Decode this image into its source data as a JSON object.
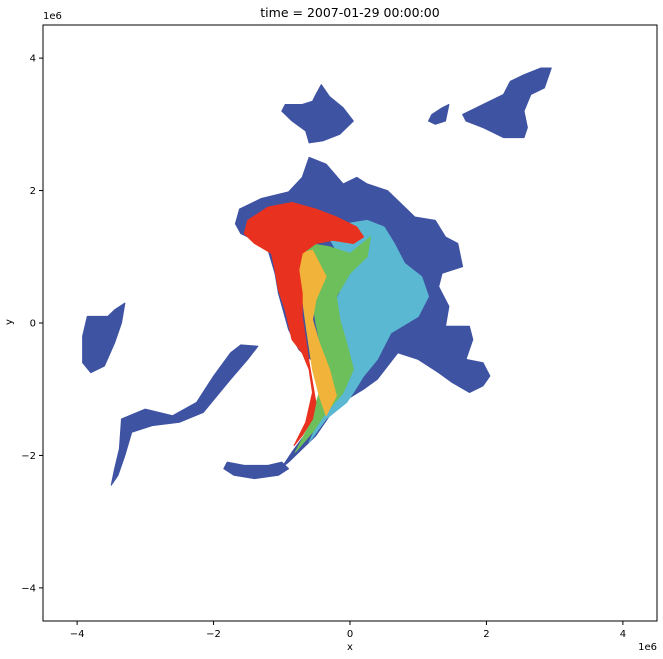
{
  "chart_data": {
    "type": "heatmap",
    "title": "time = 2007-01-29 00:00:00",
    "xlabel": "x",
    "ylabel": "y",
    "x_offset_label": "1e6",
    "y_offset_label": "1e6",
    "xlim": [
      -4.5,
      4.5
    ],
    "ylim": [
      -4.5,
      4.5
    ],
    "x_ticks": [
      -4,
      -2,
      0,
      2,
      4
    ],
    "y_ticks": [
      -4,
      -2,
      0,
      2,
      4
    ],
    "grid": false,
    "legend": "none",
    "colors": {
      "background": "#ffffff",
      "outer_region": "#3f53a3",
      "category_cyan": "#5ab8d2",
      "category_green": "#6cbf5b",
      "category_yellow": "#f2b33a",
      "category_red": "#e8321f"
    },
    "regions": [
      {
        "value_color": "outer_region",
        "polygons": [
          [
            [
              -1.62,
              1.72
            ],
            [
              -1.3,
              1.88
            ],
            [
              -0.9,
              1.98
            ],
            [
              -0.7,
              2.2
            ],
            [
              -0.6,
              2.5
            ],
            [
              -0.35,
              2.4
            ],
            [
              -0.1,
              2.1
            ],
            [
              0.1,
              2.2
            ],
            [
              0.25,
              2.1
            ],
            [
              0.55,
              2.0
            ],
            [
              0.7,
              1.85
            ],
            [
              0.95,
              1.6
            ],
            [
              1.25,
              1.55
            ],
            [
              1.4,
              1.3
            ],
            [
              1.58,
              1.2
            ],
            [
              1.65,
              0.85
            ],
            [
              1.35,
              0.75
            ],
            [
              1.3,
              0.55
            ],
            [
              1.45,
              0.25
            ],
            [
              1.4,
              -0.05
            ],
            [
              1.75,
              -0.05
            ],
            [
              1.8,
              -0.25
            ],
            [
              1.7,
              -0.55
            ],
            [
              1.95,
              -0.6
            ],
            [
              2.05,
              -0.8
            ],
            [
              1.95,
              -0.95
            ],
            [
              1.75,
              -1.05
            ],
            [
              1.5,
              -0.9
            ],
            [
              1.3,
              -0.75
            ],
            [
              1.0,
              -0.55
            ],
            [
              0.7,
              -0.45
            ],
            [
              0.4,
              -0.85
            ],
            [
              0.2,
              -1.0
            ],
            [
              -0.2,
              -1.25
            ],
            [
              -0.5,
              -1.7
            ],
            [
              -0.9,
              -2.1
            ],
            [
              -1.0,
              -2.18
            ],
            [
              -0.85,
              -1.95
            ],
            [
              -0.6,
              -1.6
            ],
            [
              -0.3,
              -0.95
            ],
            [
              -0.5,
              -0.6
            ],
            [
              -0.65,
              -0.5
            ],
            [
              -0.75,
              -0.4
            ],
            [
              -0.9,
              -0.1
            ],
            [
              -1.05,
              0.45
            ],
            [
              -1.1,
              0.75
            ],
            [
              -1.2,
              1.1
            ],
            [
              -1.4,
              1.25
            ],
            [
              -1.6,
              1.35
            ],
            [
              -1.68,
              1.5
            ]
          ],
          [
            [
              -0.95,
              3.3
            ],
            [
              -0.7,
              3.3
            ],
            [
              -0.55,
              3.35
            ],
            [
              -0.5,
              3.45
            ],
            [
              -0.42,
              3.6
            ],
            [
              -0.3,
              3.42
            ],
            [
              -0.1,
              3.25
            ],
            [
              0.05,
              3.05
            ],
            [
              -0.15,
              2.85
            ],
            [
              -0.4,
              2.75
            ],
            [
              -0.6,
              2.72
            ],
            [
              -0.65,
              2.9
            ],
            [
              -0.85,
              3.05
            ],
            [
              -1.0,
              3.2
            ]
          ],
          [
            [
              1.95,
              3.3
            ],
            [
              2.25,
              3.45
            ],
            [
              2.35,
              3.65
            ],
            [
              2.55,
              3.75
            ],
            [
              2.8,
              3.85
            ],
            [
              2.95,
              3.85
            ],
            [
              2.85,
              3.55
            ],
            [
              2.65,
              3.45
            ],
            [
              2.55,
              3.2
            ],
            [
              2.6,
              2.95
            ],
            [
              2.55,
              2.8
            ],
            [
              2.25,
              2.8
            ],
            [
              1.95,
              2.95
            ],
            [
              1.7,
              3.05
            ],
            [
              1.65,
              3.15
            ]
          ],
          [
            [
              1.2,
              3.15
            ],
            [
              1.35,
              3.25
            ],
            [
              1.45,
              3.3
            ],
            [
              1.4,
              3.05
            ],
            [
              1.25,
              3.0
            ],
            [
              1.15,
              3.05
            ]
          ],
          [
            [
              -3.85,
              0.1
            ],
            [
              -3.55,
              0.1
            ],
            [
              -3.45,
              0.2
            ],
            [
              -3.3,
              0.3
            ],
            [
              -3.35,
              0.0
            ],
            [
              -3.45,
              -0.3
            ],
            [
              -3.6,
              -0.65
            ],
            [
              -3.8,
              -0.75
            ],
            [
              -3.92,
              -0.6
            ],
            [
              -3.92,
              -0.2
            ]
          ],
          [
            [
              -3.35,
              -1.45
            ],
            [
              -3.0,
              -1.3
            ],
            [
              -2.6,
              -1.4
            ],
            [
              -2.25,
              -1.2
            ],
            [
              -2.0,
              -0.8
            ],
            [
              -1.75,
              -0.45
            ],
            [
              -1.6,
              -0.33
            ],
            [
              -1.35,
              -0.35
            ],
            [
              -1.5,
              -0.55
            ],
            [
              -1.75,
              -0.85
            ],
            [
              -1.95,
              -1.1
            ],
            [
              -2.15,
              -1.35
            ],
            [
              -2.5,
              -1.5
            ],
            [
              -2.9,
              -1.55
            ],
            [
              -3.2,
              -1.65
            ],
            [
              -3.3,
              -2.0
            ],
            [
              -3.4,
              -2.3
            ],
            [
              -3.5,
              -2.45
            ],
            [
              -3.45,
              -2.2
            ],
            [
              -3.38,
              -1.9
            ]
          ],
          [
            [
              -1.8,
              -2.1
            ],
            [
              -1.55,
              -2.15
            ],
            [
              -1.2,
              -2.15
            ],
            [
              -1.0,
              -2.1
            ],
            [
              -0.9,
              -2.2
            ],
            [
              -1.05,
              -2.3
            ],
            [
              -1.4,
              -2.35
            ],
            [
              -1.7,
              -2.3
            ],
            [
              -1.85,
              -2.2
            ]
          ]
        ]
      },
      {
        "value_color": "category_cyan",
        "polygons": [
          [
            [
              -0.4,
              1.45
            ],
            [
              -0.05,
              1.5
            ],
            [
              0.25,
              1.55
            ],
            [
              0.5,
              1.45
            ],
            [
              0.65,
              1.2
            ],
            [
              0.8,
              0.9
            ],
            [
              1.05,
              0.7
            ],
            [
              1.15,
              0.4
            ],
            [
              1.0,
              0.1
            ],
            [
              0.6,
              -0.15
            ],
            [
              0.4,
              -0.55
            ],
            [
              0.2,
              -0.8
            ],
            [
              0.05,
              -1.05
            ],
            [
              -0.05,
              -1.2
            ],
            [
              -0.35,
              -1.45
            ],
            [
              -0.6,
              -1.8
            ],
            [
              -0.35,
              -1.25
            ],
            [
              -0.2,
              -0.9
            ],
            [
              -0.3,
              -0.4
            ],
            [
              -0.35,
              0.1
            ],
            [
              -0.15,
              0.45
            ],
            [
              -0.1,
              0.8
            ],
            [
              -0.2,
              1.1
            ]
          ]
        ]
      },
      {
        "value_color": "category_green",
        "polygons": [
          [
            [
              -0.6,
              1.2
            ],
            [
              -0.3,
              1.15
            ],
            [
              0.0,
              1.05
            ],
            [
              0.3,
              1.3
            ],
            [
              0.25,
              1.0
            ],
            [
              0.0,
              0.75
            ],
            [
              -0.2,
              0.4
            ],
            [
              -0.15,
              0.05
            ],
            [
              -0.05,
              -0.3
            ],
            [
              0.05,
              -0.7
            ],
            [
              -0.1,
              -1.05
            ],
            [
              -0.35,
              -1.35
            ],
            [
              -0.55,
              -1.65
            ],
            [
              -0.8,
              -1.95
            ],
            [
              -0.6,
              -1.55
            ],
            [
              -0.45,
              -1.05
            ],
            [
              -0.4,
              -0.5
            ],
            [
              -0.5,
              0.0
            ],
            [
              -0.55,
              0.35
            ],
            [
              -0.65,
              0.75
            ],
            [
              -0.75,
              1.0
            ]
          ]
        ]
      },
      {
        "value_color": "category_yellow",
        "polygons": [
          [
            [
              -0.75,
              1.05
            ],
            [
              -0.55,
              1.1
            ],
            [
              -0.45,
              0.9
            ],
            [
              -0.35,
              0.7
            ],
            [
              -0.5,
              0.35
            ],
            [
              -0.55,
              0.05
            ],
            [
              -0.45,
              -0.3
            ],
            [
              -0.3,
              -0.7
            ],
            [
              -0.2,
              -1.1
            ],
            [
              -0.35,
              -1.4
            ],
            [
              -0.45,
              -1.1
            ],
            [
              -0.55,
              -0.7
            ],
            [
              -0.6,
              -0.35
            ],
            [
              -0.65,
              0.0
            ],
            [
              -0.7,
              0.4
            ],
            [
              -0.8,
              0.75
            ]
          ]
        ]
      },
      {
        "value_color": "category_red",
        "polygons": [
          [
            [
              -1.5,
              1.55
            ],
            [
              -1.2,
              1.75
            ],
            [
              -0.85,
              1.82
            ],
            [
              -0.5,
              1.72
            ],
            [
              -0.2,
              1.6
            ],
            [
              0.1,
              1.45
            ],
            [
              0.2,
              1.3
            ],
            [
              0.05,
              1.2
            ],
            [
              -0.25,
              1.25
            ],
            [
              -0.5,
              1.2
            ],
            [
              -0.7,
              1.05
            ],
            [
              -0.75,
              0.8
            ],
            [
              -0.7,
              0.45
            ],
            [
              -0.7,
              0.1
            ],
            [
              -0.65,
              -0.25
            ],
            [
              -0.6,
              -0.6
            ],
            [
              -0.55,
              -0.9
            ],
            [
              -0.5,
              -1.2
            ],
            [
              -0.55,
              -1.45
            ],
            [
              -0.7,
              -1.7
            ],
            [
              -0.82,
              -1.85
            ],
            [
              -0.65,
              -1.5
            ],
            [
              -0.55,
              -1.05
            ],
            [
              -0.6,
              -0.7
            ],
            [
              -0.7,
              -0.45
            ],
            [
              -0.85,
              -0.25
            ],
            [
              -0.95,
              0.2
            ],
            [
              -1.05,
              0.5
            ],
            [
              -1.1,
              0.8
            ],
            [
              -1.15,
              1.05
            ],
            [
              -1.4,
              1.2
            ],
            [
              -1.55,
              1.35
            ]
          ]
        ]
      }
    ]
  }
}
